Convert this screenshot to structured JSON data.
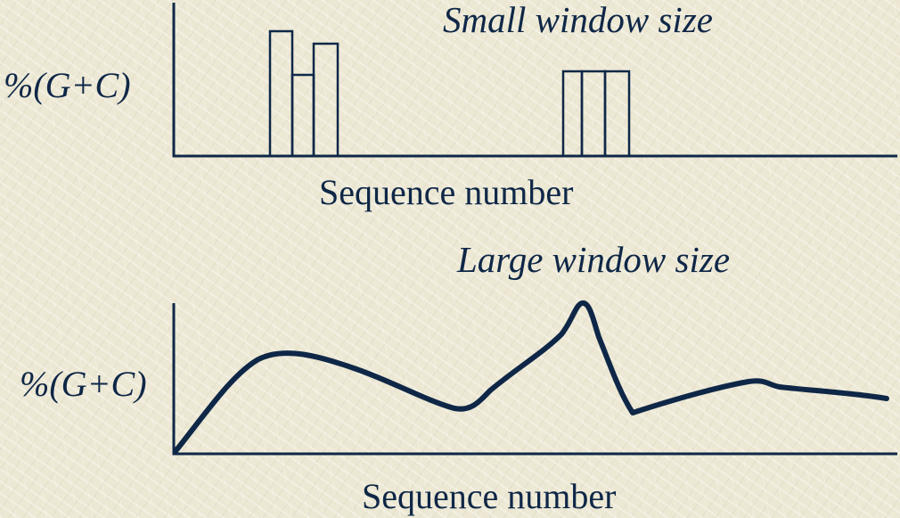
{
  "top_panel": {
    "title": "Small window size",
    "ylabel": "%(G+C)",
    "xlabel": "Sequence number"
  },
  "bottom_panel": {
    "title": "Large window size",
    "ylabel": "%(G+C)",
    "xlabel": "Sequence number"
  },
  "colors": {
    "ink": "#0f2747",
    "background": "#ece8d4"
  }
}
